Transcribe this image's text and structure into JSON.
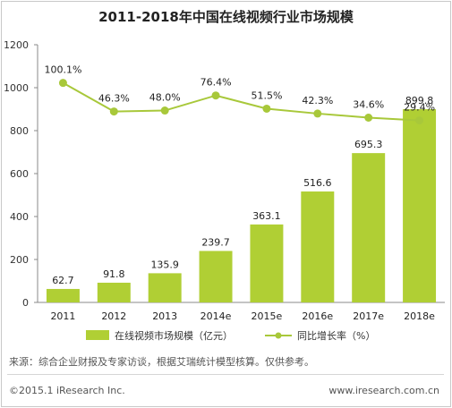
{
  "chart_data": {
    "type": "bar",
    "title": "2011-2018年中国在线视频行业市场规模",
    "categories": [
      "2011",
      "2012",
      "2013",
      "2014e",
      "2015e",
      "2016e",
      "2017e",
      "2018e"
    ],
    "series": [
      {
        "name": "在线视频市场规模（亿元）",
        "type": "bar",
        "values": [
          62.7,
          91.8,
          135.9,
          239.7,
          363.1,
          516.6,
          695.3,
          899.8
        ],
        "labels": [
          "62.7",
          "91.8",
          "135.9",
          "239.7",
          "363.1",
          "516.6",
          "695.3",
          "899.8"
        ],
        "color": "#b0cf34"
      },
      {
        "name": "同比增长率（%）",
        "type": "line",
        "values": [
          100.1,
          46.3,
          48.0,
          76.4,
          51.5,
          42.3,
          34.6,
          29.4
        ],
        "labels": [
          "100.1%",
          "46.3%",
          "48.0%",
          "76.4%",
          "51.5%",
          "42.3%",
          "34.6%",
          "29.4%"
        ],
        "color": "#a8c83a"
      }
    ],
    "y_axis": {
      "min": 0,
      "max": 1200,
      "ticks": [
        0,
        200,
        400,
        600,
        800,
        1000,
        1200
      ],
      "tick_labels": [
        "0",
        "200",
        "400",
        "600",
        "800",
        "1000",
        "1200"
      ]
    },
    "grid": false,
    "legend_position": "bottom"
  },
  "footer": {
    "source": "来源：综合企业财报及专家访谈，根据艾瑞统计模型核算。仅供参考。",
    "copyright": "©2015.1 iResearch Inc.",
    "website": "www.iresearch.com.cn"
  }
}
